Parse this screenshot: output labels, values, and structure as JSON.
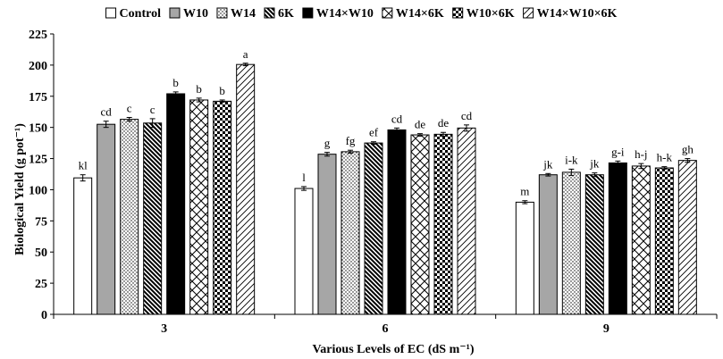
{
  "chart_data": {
    "type": "bar",
    "title": "",
    "xlabel": "Various Levels of EC (dS m⁻¹)",
    "ylabel": "Biological Yield (g pot⁻¹)",
    "ylim": [
      0,
      225
    ],
    "yticks": [
      "0",
      "25",
      "50",
      "75",
      "100",
      "125",
      "150",
      "175",
      "200",
      "225"
    ],
    "categories": [
      "3",
      "6",
      "9"
    ],
    "legend_position": "top",
    "grid": false,
    "series": [
      {
        "name": "Control",
        "pattern": "white",
        "values": [
          109.5,
          101,
          90
        ],
        "errors": [
          2.5,
          1.5,
          1.2
        ],
        "letters": [
          "kl",
          "l",
          "m"
        ]
      },
      {
        "name": "W10",
        "pattern": "gray",
        "values": [
          152.5,
          128.5,
          112
        ],
        "errors": [
          2.5,
          1.5,
          1.0
        ],
        "letters": [
          "cd",
          "g",
          "jk"
        ]
      },
      {
        "name": "W14",
        "pattern": "dots",
        "values": [
          156.5,
          130.5,
          114
        ],
        "errors": [
          1.5,
          1.2,
          2.5
        ],
        "letters": [
          "c",
          "fg",
          "i-k"
        ]
      },
      {
        "name": "6K",
        "pattern": "diag",
        "values": [
          153.5,
          137.5,
          112
        ],
        "errors": [
          3.5,
          1.0,
          1.5
        ],
        "letters": [
          "c",
          "ef",
          "jk"
        ]
      },
      {
        "name": "W14×W10",
        "pattern": "black",
        "values": [
          177,
          148,
          121.5
        ],
        "errors": [
          1.5,
          1.5,
          1.5
        ],
        "letters": [
          "b",
          "cd",
          "g-i"
        ]
      },
      {
        "name": "W14×6K",
        "pattern": "zigzag",
        "values": [
          172,
          144,
          119
        ],
        "errors": [
          1.5,
          1.0,
          2.0
        ],
        "letters": [
          "b",
          "de",
          "h-j"
        ]
      },
      {
        "name": "W10×6K",
        "pattern": "checker",
        "values": [
          171,
          144.5,
          117.5
        ],
        "errors": [
          1.0,
          1.5,
          1.0
        ],
        "letters": [
          "b",
          "de",
          "h-k"
        ]
      },
      {
        "name": "W14×W10×6K",
        "pattern": "wide",
        "values": [
          200.5,
          149.5,
          123.5
        ],
        "errors": [
          1.0,
          2.5,
          1.5
        ],
        "letters": [
          "a",
          "cd",
          "gh"
        ]
      }
    ]
  }
}
